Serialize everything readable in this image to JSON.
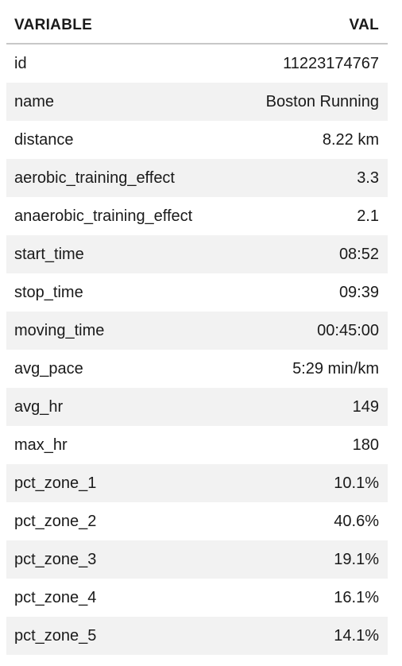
{
  "headers": {
    "variable": "VARIABLE",
    "value": "VAL"
  },
  "rows": [
    {
      "variable": "id",
      "value": "11223174767"
    },
    {
      "variable": "name",
      "value": "Boston Running"
    },
    {
      "variable": "distance",
      "value": "8.22 km"
    },
    {
      "variable": "aerobic_training_effect",
      "value": "3.3"
    },
    {
      "variable": "anaerobic_training_effect",
      "value": "2.1"
    },
    {
      "variable": "start_time",
      "value": "08:52"
    },
    {
      "variable": "stop_time",
      "value": "09:39"
    },
    {
      "variable": "moving_time",
      "value": "00:45:00"
    },
    {
      "variable": "avg_pace",
      "value": "5:29 min/km"
    },
    {
      "variable": "avg_hr",
      "value": "149"
    },
    {
      "variable": "max_hr",
      "value": "180"
    },
    {
      "variable": "pct_zone_1",
      "value": "10.1%"
    },
    {
      "variable": "pct_zone_2",
      "value": "40.6%"
    },
    {
      "variable": "pct_zone_3",
      "value": "19.1%"
    },
    {
      "variable": "pct_zone_4",
      "value": "16.1%"
    },
    {
      "variable": "pct_zone_5",
      "value": "14.1%"
    }
  ]
}
